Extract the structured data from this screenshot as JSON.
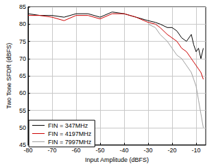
{
  "chart_data": {
    "type": "line",
    "x_label": "Input Amplitude (dBFS)",
    "y_label": "Two Tone SFDR (dBFS)",
    "x": [
      -80,
      -75,
      -70,
      -65,
      -60,
      -55,
      -50,
      -45,
      -40,
      -35,
      -30,
      -27,
      -25,
      -22,
      -20,
      -18,
      -16,
      -14,
      -12,
      -11,
      -10,
      -9,
      -8,
      -7
    ],
    "series": [
      {
        "name": "FIN = 347MHz",
        "color": "#000000",
        "values": [
          83,
          82.5,
          82.5,
          82,
          83,
          83,
          82,
          83.5,
          83,
          82,
          81,
          80.5,
          80,
          79,
          79,
          78,
          76,
          75,
          77,
          74,
          72,
          73,
          70,
          73
        ]
      },
      {
        "name": "FIN = 4197MHz",
        "color": "#cc0000",
        "values": [
          82.5,
          82.5,
          82,
          81,
          82.5,
          82.5,
          81.5,
          83,
          83,
          82,
          80.5,
          80,
          79,
          77,
          76,
          75,
          73,
          72,
          70,
          69,
          68,
          67,
          66,
          64
        ]
      },
      {
        "name": "FIN = 7997MHz",
        "color": "#a0a0a0",
        "values": [
          null,
          null,
          null,
          null,
          null,
          null,
          null,
          null,
          null,
          null,
          80,
          79,
          77,
          75,
          73,
          71,
          70,
          68,
          66,
          64,
          62,
          58,
          54,
          50
        ]
      }
    ],
    "xlim": [
      -80,
      -6
    ],
    "xticks": [
      -80,
      -70,
      -60,
      -50,
      -40,
      -30,
      -20,
      -10
    ],
    "ylim": [
      45,
      85
    ],
    "yticks": [
      45,
      50,
      55,
      60,
      65,
      70,
      75,
      80,
      85
    ],
    "grid": true,
    "legend": "lower left"
  }
}
